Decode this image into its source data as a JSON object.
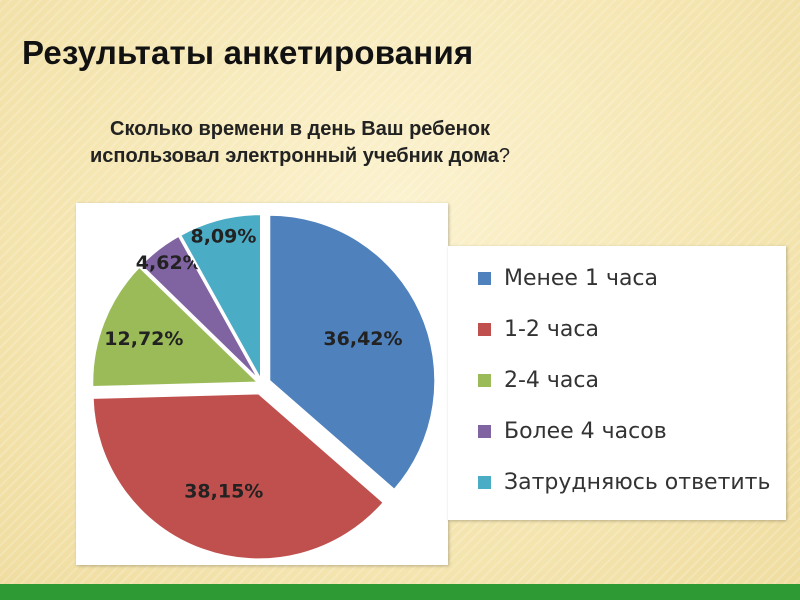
{
  "slide": {
    "title": "Результаты анкетирования",
    "question_line1": "Сколько времени в день Ваш ребенок",
    "question_line2": "использовал электронный учебник дома",
    "question_mark": "?"
  },
  "colors": {
    "background": "#f6e9b9",
    "footer_bar": "#2d9a34"
  },
  "chart_data": {
    "type": "pie",
    "title": "",
    "legend_position": "right",
    "categories": [
      "Менее 1 часа",
      "1-2 часа",
      "2-4 часа",
      "Более 4 часов",
      "Затрудняюсь ответить"
    ],
    "values": [
      36.42,
      38.15,
      12.72,
      4.62,
      8.09
    ],
    "data_labels": [
      "36,42%",
      "38,15%",
      "12,72%",
      "4,62%",
      "8,09%"
    ],
    "colors": [
      "#4f81bd",
      "#c0504d",
      "#9bbb59",
      "#8064a2",
      "#4bacc6"
    ],
    "exploded": true
  }
}
